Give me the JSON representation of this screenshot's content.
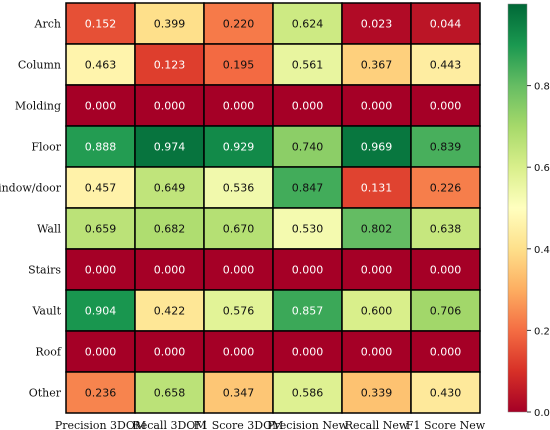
{
  "chart_data": {
    "type": "heatmap",
    "title": "",
    "xlabel": "",
    "ylabel": "",
    "rows": [
      "Arch",
      "Column",
      "Molding",
      "Floor",
      "Window/door",
      "Wall",
      "Stairs",
      "Vault",
      "Roof",
      "Other"
    ],
    "columns": [
      "Precision 3DOM",
      "Recall 3DOM",
      "F1 Score 3DOM",
      "Precision New",
      "Recall New",
      "F1 Score New"
    ],
    "values": [
      [
        0.152,
        0.399,
        0.22,
        0.624,
        0.023,
        0.044
      ],
      [
        0.463,
        0.123,
        0.195,
        0.561,
        0.367,
        0.443
      ],
      [
        0.0,
        0.0,
        0.0,
        0.0,
        0.0,
        0.0
      ],
      [
        0.888,
        0.974,
        0.929,
        0.74,
        0.969,
        0.839
      ],
      [
        0.457,
        0.649,
        0.536,
        0.847,
        0.131,
        0.226
      ],
      [
        0.659,
        0.682,
        0.67,
        0.53,
        0.802,
        0.638
      ],
      [
        0.0,
        0.0,
        0.0,
        0.0,
        0.0,
        0.0
      ],
      [
        0.904,
        0.422,
        0.576,
        0.857,
        0.6,
        0.706
      ],
      [
        0.0,
        0.0,
        0.0,
        0.0,
        0.0,
        0.0
      ],
      [
        0.236,
        0.658,
        0.347,
        0.586,
        0.339,
        0.43
      ]
    ],
    "value_labels": [
      [
        "0.152",
        "0.399",
        "0.220",
        "0.624",
        "0.023",
        "0.044"
      ],
      [
        "0.463",
        "0.123",
        "0.195",
        "0.561",
        "0.367",
        "0.443"
      ],
      [
        "0.000",
        "0.000",
        "0.000",
        "0.000",
        "0.000",
        "0.000"
      ],
      [
        "0.888",
        "0.974",
        "0.929",
        "0.740",
        "0.969",
        "0.839"
      ],
      [
        "0.457",
        "0.649",
        "0.536",
        "0.847",
        "0.131",
        "0.226"
      ],
      [
        "0.659",
        "0.682",
        "0.670",
        "0.530",
        "0.802",
        "0.638"
      ],
      [
        "0.000",
        "0.000",
        "0.000",
        "0.000",
        "0.000",
        "0.000"
      ],
      [
        "0.904",
        "0.422",
        "0.576",
        "0.857",
        "0.600",
        "0.706"
      ],
      [
        "0.000",
        "0.000",
        "0.000",
        "0.000",
        "0.000",
        "0.000"
      ],
      [
        "0.236",
        "0.658",
        "0.347",
        "0.586",
        "0.339",
        "0.430"
      ]
    ],
    "colorbar": {
      "range": [
        0.0,
        1.0
      ],
      "ticks": [
        0.0,
        0.2,
        0.4,
        0.6,
        0.8
      ],
      "tick_labels": [
        "0.0",
        "0.2",
        "0.4",
        "0.6",
        "0.8"
      ],
      "colormap": "RdYlGn"
    },
    "grid": true,
    "colors": {
      "low": "#a50026",
      "mid": "#ffffbf",
      "high": "#006837",
      "cell_border": "#000000"
    }
  }
}
